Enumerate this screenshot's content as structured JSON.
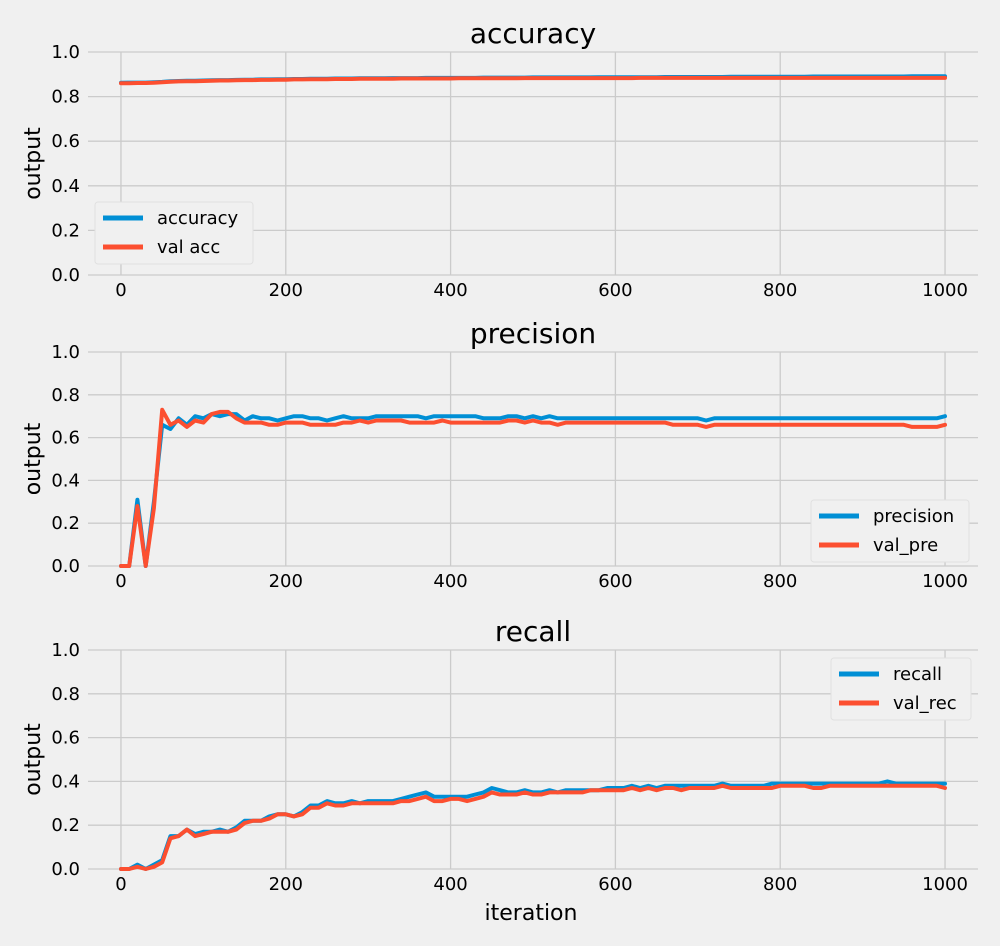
{
  "colors": {
    "background": "#f0f0f0",
    "grid": "#cbcbcb",
    "train": "#008fd5",
    "val": "#fc4f30"
  },
  "chart_data": [
    {
      "type": "line",
      "title": "accuracy",
      "xlabel": "",
      "ylabel": "output",
      "xlim": [
        -40,
        1040
      ],
      "ylim": [
        0,
        1
      ],
      "xticks": [
        "0",
        "200",
        "400",
        "600",
        "800",
        "1000"
      ],
      "yticks": [
        "0.0",
        "0.2",
        "0.4",
        "0.6",
        "0.8",
        "1.0"
      ],
      "grid": true,
      "legend_position": "lower-left",
      "x": [
        0,
        10,
        20,
        30,
        40,
        50,
        60,
        70,
        80,
        90,
        100,
        110,
        120,
        130,
        140,
        150,
        160,
        170,
        180,
        190,
        200,
        210,
        220,
        230,
        240,
        250,
        260,
        270,
        280,
        290,
        300,
        310,
        320,
        330,
        340,
        350,
        360,
        370,
        380,
        390,
        400,
        410,
        420,
        430,
        440,
        450,
        460,
        470,
        480,
        490,
        500,
        510,
        520,
        530,
        540,
        550,
        560,
        570,
        580,
        590,
        600,
        610,
        620,
        630,
        640,
        650,
        660,
        670,
        680,
        690,
        700,
        710,
        720,
        730,
        740,
        750,
        760,
        770,
        780,
        790,
        800,
        810,
        820,
        830,
        840,
        850,
        860,
        870,
        880,
        890,
        900,
        910,
        920,
        930,
        940,
        950,
        960,
        970,
        980,
        990,
        1000
      ],
      "series": [
        {
          "name": "accuracy",
          "color": "#008fd5",
          "values": [
            0.862,
            0.863,
            0.863,
            0.863,
            0.864,
            0.866,
            0.869,
            0.87,
            0.871,
            0.871,
            0.872,
            0.873,
            0.874,
            0.874,
            0.875,
            0.876,
            0.876,
            0.877,
            0.877,
            0.878,
            0.878,
            0.879,
            0.879,
            0.88,
            0.88,
            0.88,
            0.881,
            0.881,
            0.881,
            0.882,
            0.882,
            0.882,
            0.882,
            0.883,
            0.883,
            0.883,
            0.883,
            0.884,
            0.884,
            0.884,
            0.884,
            0.884,
            0.884,
            0.884,
            0.885,
            0.885,
            0.885,
            0.885,
            0.885,
            0.885,
            0.886,
            0.886,
            0.886,
            0.886,
            0.886,
            0.886,
            0.886,
            0.886,
            0.887,
            0.887,
            0.887,
            0.887,
            0.887,
            0.887,
            0.887,
            0.887,
            0.888,
            0.888,
            0.888,
            0.888,
            0.888,
            0.888,
            0.888,
            0.888,
            0.889,
            0.889,
            0.889,
            0.889,
            0.889,
            0.889,
            0.889,
            0.889,
            0.889,
            0.889,
            0.89,
            0.89,
            0.89,
            0.89,
            0.89,
            0.89,
            0.89,
            0.89,
            0.89,
            0.89,
            0.89,
            0.89,
            0.891,
            0.891,
            0.891,
            0.891,
            0.891
          ]
        },
        {
          "name": "val acc",
          "color": "#fc4f30",
          "values": [
            0.86,
            0.86,
            0.861,
            0.861,
            0.862,
            0.864,
            0.867,
            0.868,
            0.869,
            0.869,
            0.87,
            0.871,
            0.872,
            0.872,
            0.873,
            0.874,
            0.874,
            0.875,
            0.875,
            0.876,
            0.876,
            0.877,
            0.877,
            0.878,
            0.878,
            0.878,
            0.879,
            0.879,
            0.879,
            0.88,
            0.88,
            0.88,
            0.88,
            0.88,
            0.881,
            0.881,
            0.881,
            0.881,
            0.881,
            0.881,
            0.881,
            0.882,
            0.882,
            0.882,
            0.882,
            0.882,
            0.882,
            0.882,
            0.882,
            0.883,
            0.883,
            0.883,
            0.883,
            0.883,
            0.883,
            0.883,
            0.883,
            0.883,
            0.883,
            0.883,
            0.883,
            0.883,
            0.883,
            0.884,
            0.884,
            0.884,
            0.884,
            0.884,
            0.884,
            0.884,
            0.884,
            0.884,
            0.884,
            0.884,
            0.884,
            0.884,
            0.884,
            0.884,
            0.884,
            0.884,
            0.884,
            0.884,
            0.884,
            0.884,
            0.884,
            0.884,
            0.884,
            0.884,
            0.884,
            0.884,
            0.884,
            0.884,
            0.884,
            0.884,
            0.884,
            0.884,
            0.884,
            0.884,
            0.884,
            0.884,
            0.884
          ]
        }
      ]
    },
    {
      "type": "line",
      "title": "precision",
      "xlabel": "",
      "ylabel": "output",
      "xlim": [
        -40,
        1040
      ],
      "ylim": [
        0,
        1
      ],
      "xticks": [
        "0",
        "200",
        "400",
        "600",
        "800",
        "1000"
      ],
      "yticks": [
        "0.0",
        "0.2",
        "0.4",
        "0.6",
        "0.8",
        "1.0"
      ],
      "grid": true,
      "legend_position": "lower-right",
      "x": [
        0,
        10,
        20,
        30,
        40,
        50,
        60,
        70,
        80,
        90,
        100,
        110,
        120,
        130,
        140,
        150,
        160,
        170,
        180,
        190,
        200,
        210,
        220,
        230,
        240,
        250,
        260,
        270,
        280,
        290,
        300,
        310,
        320,
        330,
        340,
        350,
        360,
        370,
        380,
        390,
        400,
        410,
        420,
        430,
        440,
        450,
        460,
        470,
        480,
        490,
        500,
        510,
        520,
        530,
        540,
        550,
        560,
        570,
        580,
        590,
        600,
        610,
        620,
        630,
        640,
        650,
        660,
        670,
        680,
        690,
        700,
        710,
        720,
        730,
        740,
        750,
        760,
        770,
        780,
        790,
        800,
        810,
        820,
        830,
        840,
        850,
        860,
        870,
        880,
        890,
        900,
        910,
        920,
        930,
        940,
        950,
        960,
        970,
        980,
        990,
        1000
      ],
      "series": [
        {
          "name": "precision",
          "color": "#008fd5",
          "values": [
            0.0,
            0.0,
            0.31,
            0.0,
            0.3,
            0.66,
            0.64,
            0.69,
            0.66,
            0.7,
            0.69,
            0.71,
            0.7,
            0.71,
            0.71,
            0.68,
            0.7,
            0.69,
            0.69,
            0.68,
            0.69,
            0.7,
            0.7,
            0.69,
            0.69,
            0.68,
            0.69,
            0.7,
            0.69,
            0.69,
            0.69,
            0.7,
            0.7,
            0.7,
            0.7,
            0.7,
            0.7,
            0.69,
            0.7,
            0.7,
            0.7,
            0.7,
            0.7,
            0.7,
            0.69,
            0.69,
            0.69,
            0.7,
            0.7,
            0.69,
            0.7,
            0.69,
            0.7,
            0.69,
            0.69,
            0.69,
            0.69,
            0.69,
            0.69,
            0.69,
            0.69,
            0.69,
            0.69,
            0.69,
            0.69,
            0.69,
            0.69,
            0.69,
            0.69,
            0.69,
            0.69,
            0.68,
            0.69,
            0.69,
            0.69,
            0.69,
            0.69,
            0.69,
            0.69,
            0.69,
            0.69,
            0.69,
            0.69,
            0.69,
            0.69,
            0.69,
            0.69,
            0.69,
            0.69,
            0.69,
            0.69,
            0.69,
            0.69,
            0.69,
            0.69,
            0.69,
            0.69,
            0.69,
            0.69,
            0.69,
            0.7
          ]
        },
        {
          "name": "val_pre",
          "color": "#fc4f30",
          "values": [
            0.0,
            0.0,
            0.28,
            0.0,
            0.27,
            0.73,
            0.66,
            0.68,
            0.65,
            0.68,
            0.67,
            0.71,
            0.72,
            0.72,
            0.69,
            0.67,
            0.67,
            0.67,
            0.66,
            0.66,
            0.67,
            0.67,
            0.67,
            0.66,
            0.66,
            0.66,
            0.66,
            0.67,
            0.67,
            0.68,
            0.67,
            0.68,
            0.68,
            0.68,
            0.68,
            0.67,
            0.67,
            0.67,
            0.67,
            0.68,
            0.67,
            0.67,
            0.67,
            0.67,
            0.67,
            0.67,
            0.67,
            0.68,
            0.68,
            0.67,
            0.68,
            0.67,
            0.67,
            0.66,
            0.67,
            0.67,
            0.67,
            0.67,
            0.67,
            0.67,
            0.67,
            0.67,
            0.67,
            0.67,
            0.67,
            0.67,
            0.67,
            0.66,
            0.66,
            0.66,
            0.66,
            0.65,
            0.66,
            0.66,
            0.66,
            0.66,
            0.66,
            0.66,
            0.66,
            0.66,
            0.66,
            0.66,
            0.66,
            0.66,
            0.66,
            0.66,
            0.66,
            0.66,
            0.66,
            0.66,
            0.66,
            0.66,
            0.66,
            0.66,
            0.66,
            0.66,
            0.65,
            0.65,
            0.65,
            0.65,
            0.66
          ]
        }
      ]
    },
    {
      "type": "line",
      "title": "recall",
      "xlabel": "iteration",
      "ylabel": "output",
      "xlim": [
        -40,
        1040
      ],
      "ylim": [
        0,
        1
      ],
      "xticks": [
        "0",
        "200",
        "400",
        "600",
        "800",
        "1000"
      ],
      "yticks": [
        "0.0",
        "0.2",
        "0.4",
        "0.6",
        "0.8",
        "1.0"
      ],
      "grid": true,
      "legend_position": "upper-right",
      "x": [
        0,
        10,
        20,
        30,
        40,
        50,
        60,
        70,
        80,
        90,
        100,
        110,
        120,
        130,
        140,
        150,
        160,
        170,
        180,
        190,
        200,
        210,
        220,
        230,
        240,
        250,
        260,
        270,
        280,
        290,
        300,
        310,
        320,
        330,
        340,
        350,
        360,
        370,
        380,
        390,
        400,
        410,
        420,
        430,
        440,
        450,
        460,
        470,
        480,
        490,
        500,
        510,
        520,
        530,
        540,
        550,
        560,
        570,
        580,
        590,
        600,
        610,
        620,
        630,
        640,
        650,
        660,
        670,
        680,
        690,
        700,
        710,
        720,
        730,
        740,
        750,
        760,
        770,
        780,
        790,
        800,
        810,
        820,
        830,
        840,
        850,
        860,
        870,
        880,
        890,
        900,
        910,
        920,
        930,
        940,
        950,
        960,
        970,
        980,
        990,
        1000
      ],
      "series": [
        {
          "name": "recall",
          "color": "#008fd5",
          "values": [
            0.0,
            0.0,
            0.02,
            0.0,
            0.02,
            0.04,
            0.15,
            0.15,
            0.18,
            0.16,
            0.17,
            0.17,
            0.18,
            0.17,
            0.19,
            0.22,
            0.22,
            0.22,
            0.24,
            0.25,
            0.25,
            0.24,
            0.26,
            0.29,
            0.29,
            0.31,
            0.3,
            0.3,
            0.31,
            0.3,
            0.31,
            0.31,
            0.31,
            0.31,
            0.32,
            0.33,
            0.34,
            0.35,
            0.33,
            0.33,
            0.33,
            0.33,
            0.33,
            0.34,
            0.35,
            0.37,
            0.36,
            0.35,
            0.35,
            0.36,
            0.35,
            0.35,
            0.36,
            0.35,
            0.36,
            0.36,
            0.36,
            0.36,
            0.36,
            0.37,
            0.37,
            0.37,
            0.38,
            0.37,
            0.38,
            0.37,
            0.38,
            0.38,
            0.38,
            0.38,
            0.38,
            0.38,
            0.38,
            0.39,
            0.38,
            0.38,
            0.38,
            0.38,
            0.38,
            0.39,
            0.39,
            0.39,
            0.39,
            0.39,
            0.39,
            0.39,
            0.39,
            0.39,
            0.39,
            0.39,
            0.39,
            0.39,
            0.39,
            0.4,
            0.39,
            0.39,
            0.39,
            0.39,
            0.39,
            0.39,
            0.39
          ]
        },
        {
          "name": "val_rec",
          "color": "#fc4f30",
          "values": [
            0.0,
            0.0,
            0.01,
            0.0,
            0.01,
            0.03,
            0.14,
            0.15,
            0.18,
            0.15,
            0.16,
            0.17,
            0.17,
            0.17,
            0.18,
            0.21,
            0.22,
            0.22,
            0.23,
            0.25,
            0.25,
            0.24,
            0.25,
            0.28,
            0.28,
            0.3,
            0.29,
            0.29,
            0.3,
            0.3,
            0.3,
            0.3,
            0.3,
            0.3,
            0.31,
            0.31,
            0.32,
            0.33,
            0.31,
            0.31,
            0.32,
            0.32,
            0.31,
            0.32,
            0.33,
            0.35,
            0.34,
            0.34,
            0.34,
            0.35,
            0.34,
            0.34,
            0.35,
            0.35,
            0.35,
            0.35,
            0.35,
            0.36,
            0.36,
            0.36,
            0.36,
            0.36,
            0.37,
            0.36,
            0.37,
            0.36,
            0.37,
            0.37,
            0.36,
            0.37,
            0.37,
            0.37,
            0.37,
            0.38,
            0.37,
            0.37,
            0.37,
            0.37,
            0.37,
            0.37,
            0.38,
            0.38,
            0.38,
            0.38,
            0.37,
            0.37,
            0.38,
            0.38,
            0.38,
            0.38,
            0.38,
            0.38,
            0.38,
            0.38,
            0.38,
            0.38,
            0.38,
            0.38,
            0.38,
            0.38,
            0.37
          ]
        }
      ]
    }
  ]
}
